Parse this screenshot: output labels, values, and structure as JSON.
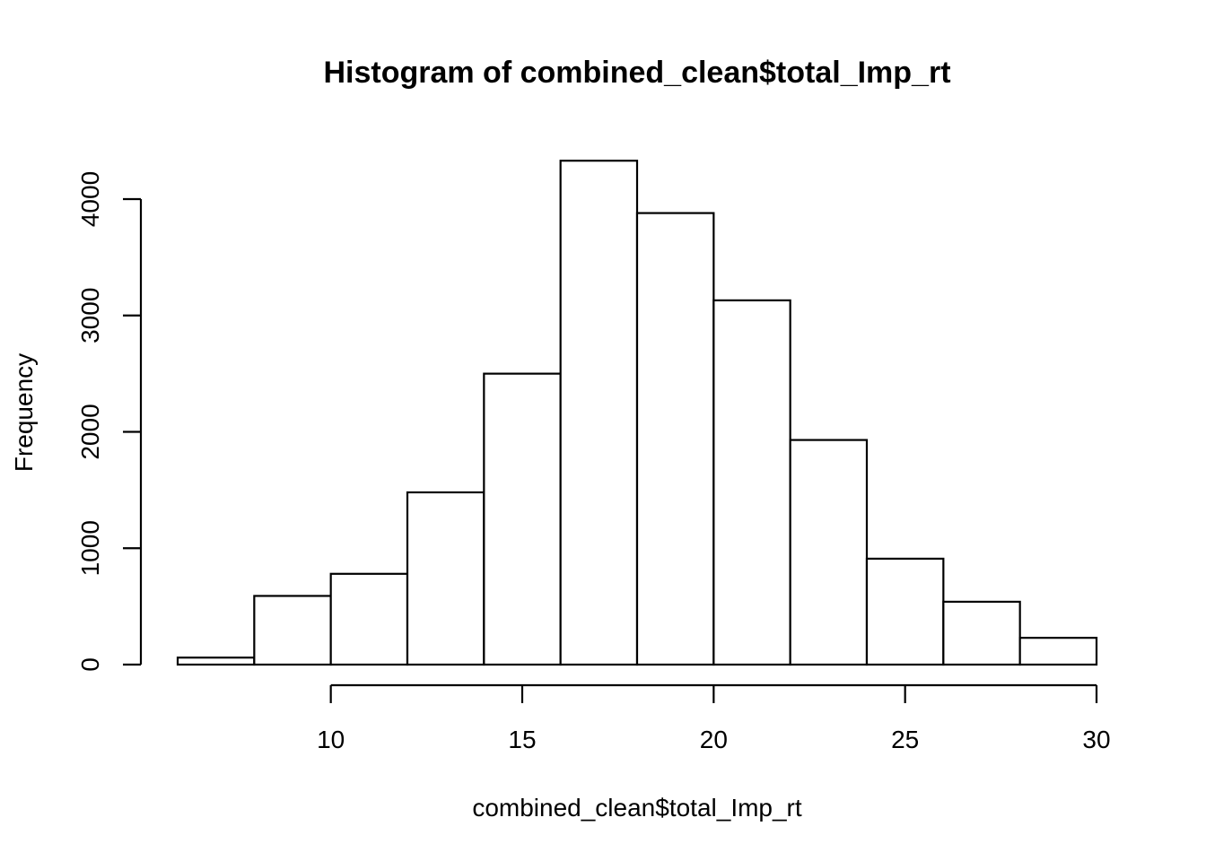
{
  "chart_data": {
    "type": "bar",
    "title": "Histogram of combined_clean$total_Imp_rt",
    "xlabel": "combined_clean$total_Imp_rt",
    "ylabel": "Frequency",
    "bins": [
      {
        "x0": 6,
        "x1": 8,
        "count": 60
      },
      {
        "x0": 8,
        "x1": 10,
        "count": 590
      },
      {
        "x0": 10,
        "x1": 12,
        "count": 780
      },
      {
        "x0": 12,
        "x1": 14,
        "count": 1480
      },
      {
        "x0": 14,
        "x1": 16,
        "count": 2500
      },
      {
        "x0": 16,
        "x1": 18,
        "count": 4330
      },
      {
        "x0": 18,
        "x1": 20,
        "count": 3880
      },
      {
        "x0": 20,
        "x1": 22,
        "count": 3130
      },
      {
        "x0": 22,
        "x1": 24,
        "count": 1930
      },
      {
        "x0": 24,
        "x1": 26,
        "count": 910
      },
      {
        "x0": 26,
        "x1": 28,
        "count": 540
      },
      {
        "x0": 28,
        "x1": 30,
        "count": 230
      }
    ],
    "x_ticks": [
      10,
      15,
      20,
      25,
      30
    ],
    "y_ticks": [
      0,
      1000,
      2000,
      3000,
      4000
    ],
    "xlim": [
      6,
      30
    ],
    "ylim": [
      0,
      4330
    ],
    "grid": false,
    "colors": {
      "bar_fill": "#ffffff",
      "bar_stroke": "#000000"
    }
  }
}
